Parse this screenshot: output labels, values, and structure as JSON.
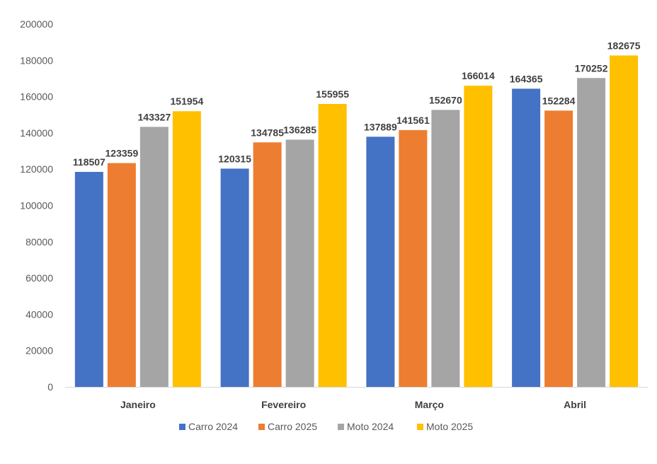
{
  "chart_data": {
    "type": "bar",
    "categories": [
      "Janeiro",
      "Fevereiro",
      "Março",
      "Abril"
    ],
    "series": [
      {
        "name": "Carro 2024",
        "color": "#4472C4",
        "values": [
          118507,
          120315,
          137889,
          164365
        ]
      },
      {
        "name": "Carro 2025",
        "color": "#ED7D31",
        "values": [
          123359,
          134785,
          141561,
          152284
        ]
      },
      {
        "name": "Moto 2024",
        "color": "#A5A5A5",
        "values": [
          143327,
          136285,
          152670,
          170252
        ]
      },
      {
        "name": "Moto 2025",
        "color": "#FFC000",
        "values": [
          151954,
          155955,
          166014,
          182675
        ]
      }
    ],
    "y_ticks": [
      "0",
      "20000",
      "40000",
      "60000",
      "80000",
      "100000",
      "120000",
      "140000",
      "160000",
      "180000",
      "200000"
    ],
    "ylim": [
      0,
      200000
    ],
    "grid": false,
    "data_labels": true,
    "legend_position": "bottom",
    "xlabel": "",
    "ylabel": "",
    "title": ""
  }
}
